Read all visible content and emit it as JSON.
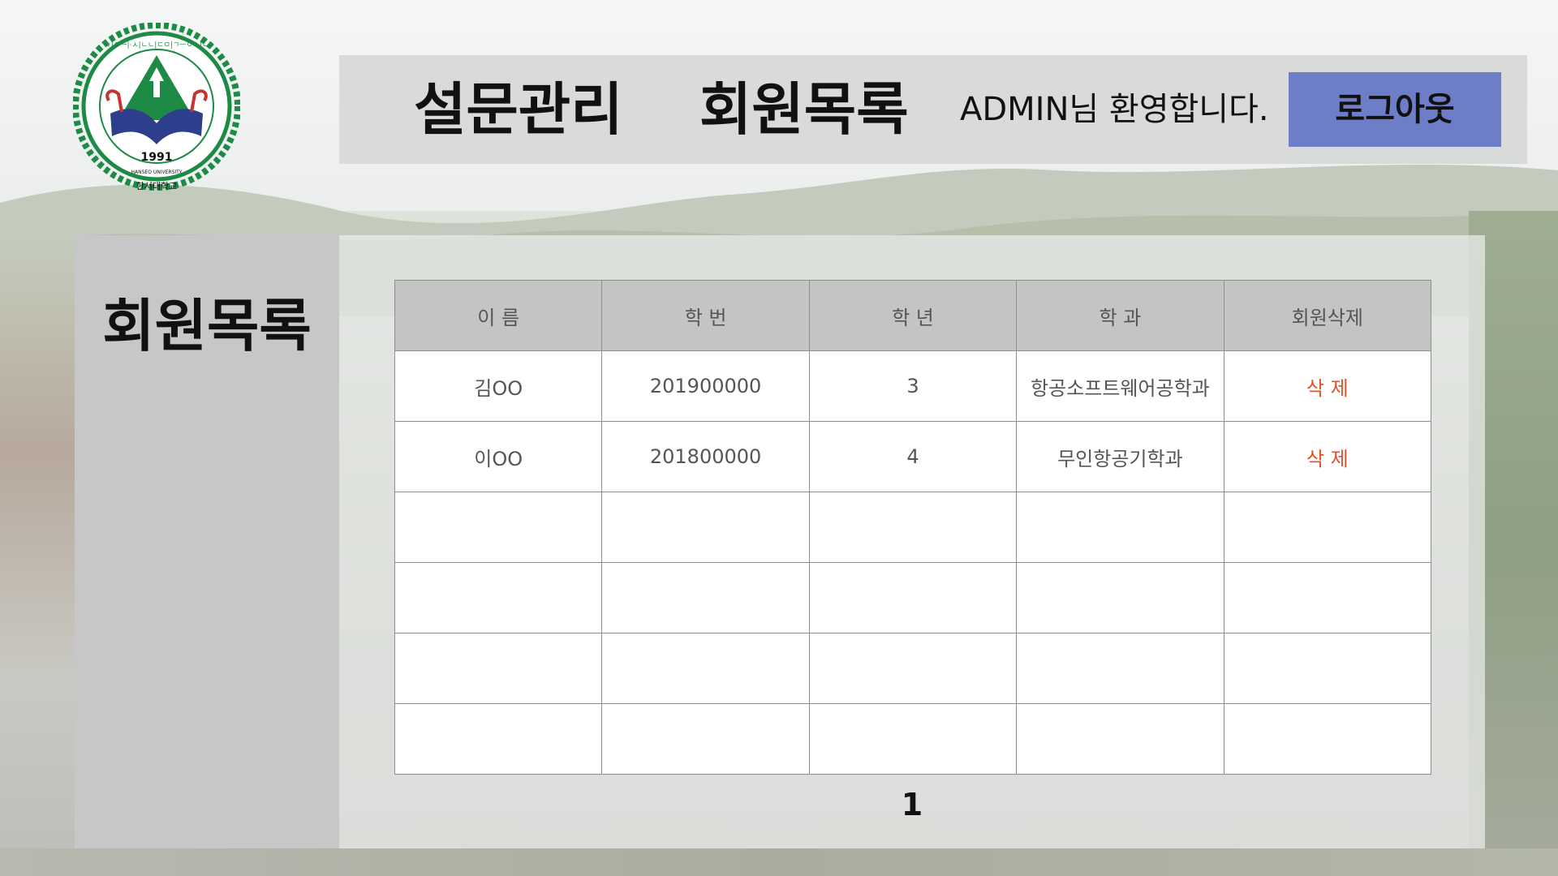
{
  "logo": {
    "year": "1991",
    "motto": "ㅎ|ㅇㅡ|·ㅅ|ㄴㄴ|ㄷㅁ|ㄱㅡㅇㅗ|ㄴ",
    "name_en": "HANSEO UNIVERSITY",
    "name_ko": "한서대학교",
    "colors": {
      "green": "#1d8a45",
      "navy": "#2d3f8c",
      "red": "#c7342e"
    }
  },
  "header": {
    "nav_survey": "설문관리",
    "nav_members": "회원목록",
    "welcome": "ADMIN님 환영합니다.",
    "logout": "로그아웃",
    "logout_color": "#6d7dc7"
  },
  "sidebar": {
    "title": "회원목록"
  },
  "table": {
    "headers": [
      "이 름",
      "학 번",
      "학 년",
      "학 과",
      "회원삭제"
    ],
    "rows": [
      {
        "name": "김OO",
        "student_id": "201900000",
        "grade": "3",
        "department": "항공소프트웨어공학과",
        "delete": "삭 제"
      },
      {
        "name": "이OO",
        "student_id": "201800000",
        "grade": "4",
        "department": "무인항공기학과",
        "delete": "삭 제"
      }
    ],
    "empty_rows": 4,
    "delete_color": "#e2502a"
  },
  "pagination": {
    "current_page": "1"
  }
}
